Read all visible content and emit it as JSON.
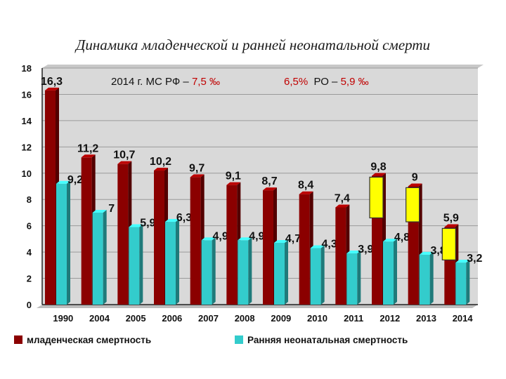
{
  "title": "Динамика младенческой и ранней неонатальной смерти",
  "annotation": {
    "part1": "2014 г. МС РФ – ",
    "part1_value": "7,5 ‰",
    "part2": "6,5%",
    "part3": "РО – ",
    "part3_value": "5,9 ‰"
  },
  "colors": {
    "infant": "#8b0000",
    "neonatal": "#33cccc",
    "highlight": "#ffff00",
    "plot_bg": "#d9d9d9"
  },
  "chart_data": {
    "type": "bar",
    "categories": [
      "1990",
      "2004",
      "2005",
      "2006",
      "2007",
      "2008",
      "2009",
      "2010",
      "2011",
      "2012",
      "2013",
      "2014"
    ],
    "series": [
      {
        "name": "младенческая смертность",
        "values": [
          16.3,
          11.2,
          10.7,
          10.2,
          9.7,
          9.1,
          8.7,
          8.4,
          7.4,
          9.8,
          9.0,
          5.9
        ],
        "labels": [
          "16,3",
          "11,2",
          "10,7",
          "10,2",
          "9,7",
          "9,1",
          "8,7",
          "8,4",
          "7,4",
          "9,8",
          "9",
          "5,9"
        ]
      },
      {
        "name": "Ранняя неонатальная смертность",
        "values": [
          9.2,
          7.0,
          5.9,
          6.3,
          4.9,
          4.9,
          4.7,
          4.3,
          3.9,
          4.8,
          3.8,
          3.2
        ],
        "labels": [
          "9,2",
          "7",
          "5,9",
          "6,3",
          "4,9",
          "4,9",
          "4,7",
          "4,3",
          "3,9",
          "4,8",
          "3,8",
          "3,2"
        ]
      }
    ],
    "yticks": [
      "0",
      "2",
      "4",
      "6",
      "8",
      "10",
      "12",
      "14",
      "16",
      "18"
    ],
    "ylim": [
      0,
      18
    ],
    "grid": true,
    "legend_position": "bottom",
    "highlighted": [
      {
        "category": "2012",
        "from": 6.6,
        "to": 9.7
      },
      {
        "category": "2013",
        "from": 6.3,
        "to": 8.9
      },
      {
        "category": "2014",
        "from": 3.4,
        "to": 5.8
      }
    ]
  }
}
